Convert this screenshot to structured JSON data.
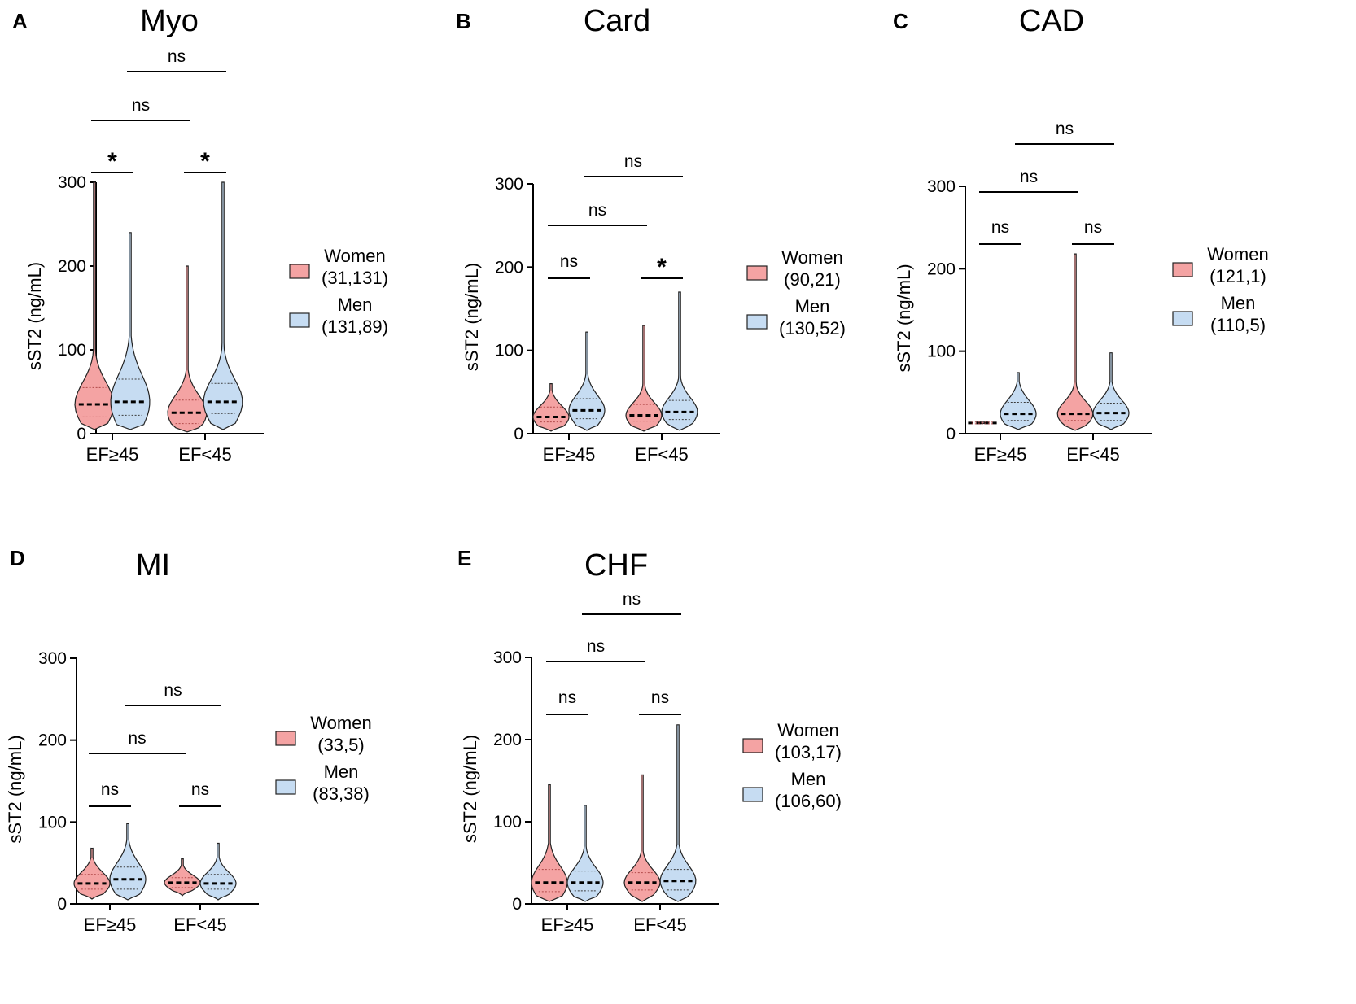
{
  "chart_data": [
    {
      "panel": "A",
      "title": "Myo",
      "type": "violin",
      "ylabel": "sST2 (ng/mL)",
      "ylim": [
        0,
        300
      ],
      "yticks": [
        0,
        100,
        200,
        300
      ],
      "categories": [
        "EF≥45",
        "EF<45"
      ],
      "series": [
        {
          "name": "Women",
          "n": "(31,131)",
          "color": "#f4a3a3",
          "medians": [
            35,
            25
          ],
          "quartiles": [
            [
              20,
              55
            ],
            [
              12,
              40
            ]
          ],
          "max": [
            300,
            200
          ],
          "min": [
            5,
            2
          ]
        },
        {
          "name": "Men",
          "n": "(131,89)",
          "color": "#c6dcf2",
          "medians": [
            38,
            38
          ],
          "quartiles": [
            [
              22,
              65
            ],
            [
              24,
              60
            ]
          ],
          "max": [
            240,
            300
          ],
          "min": [
            5,
            5
          ]
        }
      ],
      "comparisons": [
        {
          "label": "*",
          "between": [
            "Women EF≥45",
            "Men EF≥45"
          ]
        },
        {
          "label": "*",
          "between": [
            "Women EF<45",
            "Men EF<45"
          ]
        },
        {
          "label": "ns",
          "between": [
            "Women EF≥45",
            "Women EF<45"
          ]
        },
        {
          "label": "ns",
          "between": [
            "Men EF≥45",
            "Men EF<45"
          ]
        }
      ]
    },
    {
      "panel": "B",
      "title": "Card",
      "type": "violin",
      "ylabel": "sST2 (ng/mL)",
      "ylim": [
        0,
        300
      ],
      "yticks": [
        0,
        100,
        200,
        300
      ],
      "categories": [
        "EF≥45",
        "EF<45"
      ],
      "series": [
        {
          "name": "Women",
          "n": "(90,21)",
          "color": "#f4a3a3",
          "medians": [
            20,
            22
          ],
          "quartiles": [
            [
              14,
              32
            ],
            [
              15,
              35
            ]
          ],
          "max": [
            60,
            130
          ],
          "min": [
            3,
            3
          ]
        },
        {
          "name": "Men",
          "n": "(130,52)",
          "color": "#c6dcf2",
          "medians": [
            28,
            26
          ],
          "quartiles": [
            [
              18,
              42
            ],
            [
              17,
              40
            ]
          ],
          "max": [
            122,
            170
          ],
          "min": [
            4,
            4
          ]
        }
      ],
      "comparisons": [
        {
          "label": "ns",
          "between": [
            "Women EF≥45",
            "Men EF≥45"
          ]
        },
        {
          "label": "*",
          "between": [
            "Women EF<45",
            "Men EF<45"
          ]
        },
        {
          "label": "ns",
          "between": [
            "Women EF≥45",
            "Women EF<45"
          ]
        },
        {
          "label": "ns",
          "between": [
            "Men EF≥45",
            "Men EF<45"
          ]
        }
      ]
    },
    {
      "panel": "C",
      "title": "CAD",
      "type": "violin",
      "ylabel": "sST2 (ng/mL)",
      "ylim": [
        0,
        300
      ],
      "yticks": [
        0,
        100,
        200,
        300
      ],
      "categories": [
        "EF≥45",
        "EF<45"
      ],
      "series": [
        {
          "name": "Women",
          "n": "(121,1)",
          "color": "#f4a3a3",
          "medians": [
            13,
            24
          ],
          "quartiles": [
            [
              12,
              14
            ],
            [
              16,
              36
            ]
          ],
          "max": [
            14,
            218
          ],
          "min": [
            12,
            4
          ]
        },
        {
          "name": "Men",
          "n": "(110,5)",
          "color": "#c6dcf2",
          "medians": [
            24,
            25
          ],
          "quartiles": [
            [
              16,
              38
            ],
            [
              16,
              37
            ]
          ],
          "max": [
            74,
            98
          ],
          "min": [
            5,
            5
          ]
        }
      ],
      "comparisons": [
        {
          "label": "ns",
          "between": [
            "Women EF≥45",
            "Men EF≥45"
          ]
        },
        {
          "label": "ns",
          "between": [
            "Women EF<45",
            "Men EF<45"
          ]
        },
        {
          "label": "ns",
          "between": [
            "Women EF≥45",
            "Women EF<45"
          ]
        },
        {
          "label": "ns",
          "between": [
            "Men EF≥45",
            "Men EF<45"
          ]
        }
      ]
    },
    {
      "panel": "D",
      "title": "MI",
      "type": "violin",
      "ylabel": "sST2 (ng/mL)",
      "ylim": [
        0,
        300
      ],
      "yticks": [
        0,
        100,
        200,
        300
      ],
      "categories": [
        "EF≥45",
        "EF<45"
      ],
      "series": [
        {
          "name": "Women",
          "n": "(33,5)",
          "color": "#f4a3a3",
          "medians": [
            25,
            26
          ],
          "quartiles": [
            [
              18,
              36
            ],
            [
              20,
              32
            ]
          ],
          "max": [
            68,
            55
          ],
          "min": [
            6,
            10
          ]
        },
        {
          "name": "Men",
          "n": "(83,38)",
          "color": "#c6dcf2",
          "medians": [
            30,
            25
          ],
          "quartiles": [
            [
              18,
              45
            ],
            [
              18,
              36
            ]
          ],
          "max": [
            98,
            74
          ],
          "min": [
            5,
            5
          ]
        }
      ],
      "comparisons": [
        {
          "label": "ns",
          "between": [
            "Women EF≥45",
            "Men EF≥45"
          ]
        },
        {
          "label": "ns",
          "between": [
            "Women EF<45",
            "Men EF<45"
          ]
        },
        {
          "label": "ns",
          "between": [
            "Women EF≥45",
            "Women EF<45"
          ]
        },
        {
          "label": "ns",
          "between": [
            "Men EF≥45",
            "Men EF<45"
          ]
        }
      ]
    },
    {
      "panel": "E",
      "title": "CHF",
      "type": "violin",
      "ylabel": "sST2 (ng/mL)",
      "ylim": [
        0,
        300
      ],
      "yticks": [
        0,
        100,
        200,
        300
      ],
      "categories": [
        "EF≥45",
        "EF<45"
      ],
      "series": [
        {
          "name": "Women",
          "n": "(103,17)",
          "color": "#f4a3a3",
          "medians": [
            26,
            26
          ],
          "quartiles": [
            [
              15,
              42
            ],
            [
              17,
              38
            ]
          ],
          "max": [
            145,
            157
          ],
          "min": [
            3,
            3
          ]
        },
        {
          "name": "Men",
          "n": "(106,60)",
          "color": "#c6dcf2",
          "medians": [
            26,
            28
          ],
          "quartiles": [
            [
              16,
              40
            ],
            [
              17,
              42
            ]
          ],
          "max": [
            120,
            218
          ],
          "min": [
            3,
            3
          ]
        }
      ],
      "comparisons": [
        {
          "label": "ns",
          "between": [
            "Women EF≥45",
            "Men EF≥45"
          ]
        },
        {
          "label": "ns",
          "between": [
            "Women EF<45",
            "Men EF<45"
          ]
        },
        {
          "label": "ns",
          "between": [
            "Women EF≥45",
            "Women EF<45"
          ]
        },
        {
          "label": "ns",
          "between": [
            "Men EF≥45",
            "Men EF<45"
          ]
        }
      ]
    }
  ]
}
